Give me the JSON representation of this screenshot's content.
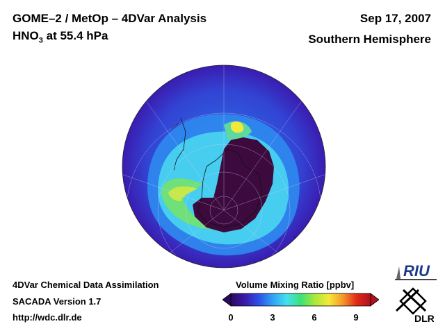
{
  "header": {
    "title_line1": "GOME–2 / MetOp – 4DVar Analysis",
    "species": "HNO",
    "species_sub": "3",
    "pressure": " at 55.4 hPa",
    "date": "Sep 17, 2007",
    "hemisphere": "Southern Hemisphere"
  },
  "footer": {
    "line1": "4DVar Chemical Data Assimilation",
    "line2": "SACADA Version 1.7",
    "line3": "http://wdc.dlr.de"
  },
  "colorbar": {
    "title": "Volume Mixing Ratio [ppbv]",
    "ticks": [
      "0",
      "3",
      "6",
      "9"
    ],
    "colors": [
      "#2a0a5e",
      "#3a1aa8",
      "#2f4fe8",
      "#2fa2f2",
      "#45e0f0",
      "#3de07a",
      "#a8e83a",
      "#f5e83a",
      "#f59a2a",
      "#e02a1a",
      "#b01020"
    ]
  },
  "logos": {
    "riu": "RIU",
    "dlr": "DLR"
  },
  "map": {
    "projection": "polar orthographic, south pole",
    "palette": {
      "outer": "#3b1cb0",
      "ring": "#2e6ae6",
      "band": "#44c4ee",
      "green": "#5ee0a0",
      "yellow": "#dcec4a",
      "vortex": "#3a0a3c"
    }
  }
}
